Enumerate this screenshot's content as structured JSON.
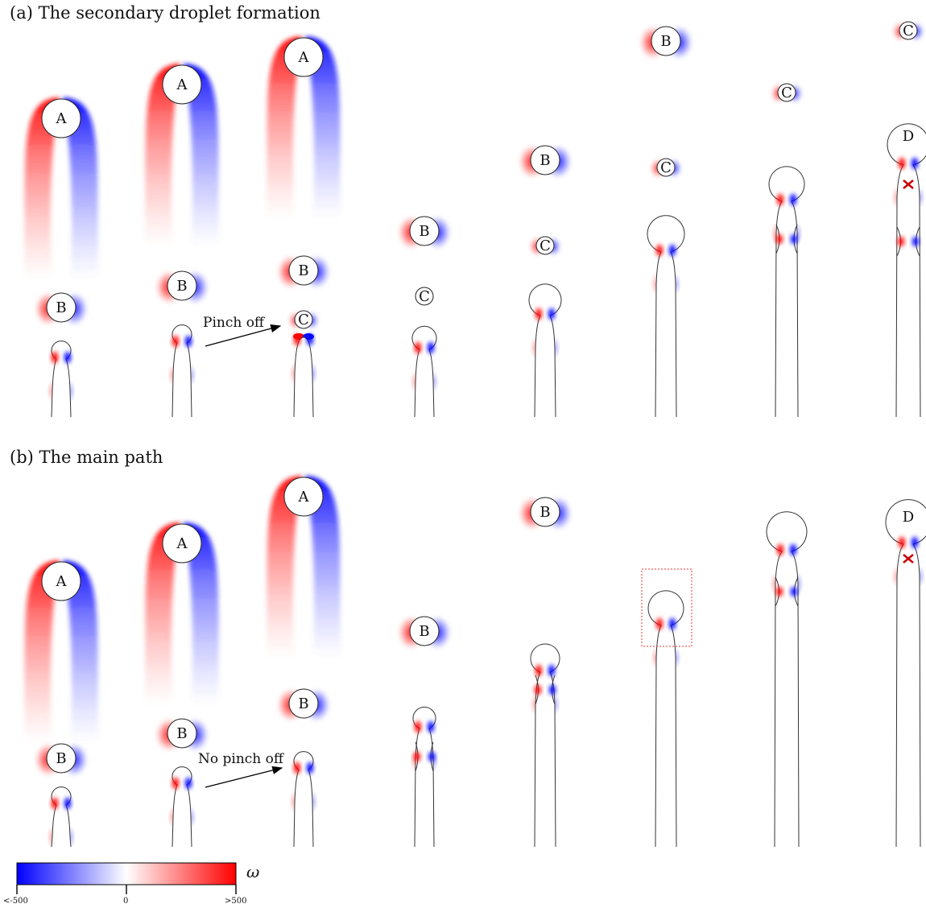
{
  "panels": {
    "a": {
      "title": "(a) The secondary droplet formation",
      "arrow_label": "Pinch off"
    },
    "b": {
      "title": "(b) The main path",
      "arrow_label": "No pinch off"
    }
  },
  "colorbar": {
    "symbol": "ω",
    "ticks": [
      "<-500",
      "0",
      ">500"
    ],
    "colors": {
      "negative": "#0000ff",
      "zero": "#ffffff",
      "positive": "#ff0000"
    }
  },
  "interface_color": "#333333",
  "frames": [
    {
      "panel": "a",
      "items": [
        {
          "type": "jet",
          "neck_y": 446,
          "bot": 518,
          "w": 12,
          "cap_r": 12
        },
        {
          "type": "drop",
          "y": 382,
          "r": 18,
          "label": "B",
          "wake": "small"
        },
        {
          "type": "drop",
          "y": 147,
          "r": 24,
          "label": "A",
          "wake": "large"
        }
      ]
    },
    {
      "panel": "a",
      "items": [
        {
          "type": "jet",
          "neck_y": 426,
          "bot": 518,
          "w": 12,
          "cap_r": 12
        },
        {
          "type": "drop",
          "y": 355,
          "r": 18,
          "label": "B",
          "wake": "small"
        },
        {
          "type": "drop",
          "y": 105,
          "r": 24,
          "label": "A",
          "wake": "large"
        }
      ]
    },
    {
      "panel": "a",
      "items": [
        {
          "type": "jet",
          "neck_y": 424,
          "bot": 518,
          "w": 12,
          "cap_r": 0
        },
        {
          "type": "drop",
          "y": 397,
          "r": 11,
          "label": "C",
          "wake": "pinch"
        },
        {
          "type": "drop",
          "y": 336,
          "r": 18,
          "label": "B",
          "wake": "small"
        },
        {
          "type": "drop",
          "y": 71,
          "r": 24,
          "label": "A",
          "wake": "large"
        }
      ]
    },
    {
      "panel": "a",
      "items": [
        {
          "type": "jet",
          "neck_y": 434,
          "bot": 518,
          "w": 12,
          "cap_r": 15
        },
        {
          "type": "drop",
          "y": 368,
          "r": 11,
          "label": "C",
          "wake": "none"
        },
        {
          "type": "drop",
          "y": 287,
          "r": 18,
          "label": "B",
          "wake": "small"
        }
      ]
    },
    {
      "panel": "a",
      "items": [
        {
          "type": "jet",
          "neck_y": 392,
          "bot": 518,
          "w": 13,
          "cap_r": 20
        },
        {
          "type": "drop",
          "y": 305,
          "r": 11,
          "label": "C",
          "wake": "tiny"
        },
        {
          "type": "drop",
          "y": 199,
          "r": 18,
          "label": "B",
          "wake": "small"
        }
      ]
    },
    {
      "panel": "a",
      "items": [
        {
          "type": "jet",
          "neck_y": 313,
          "bot": 518,
          "w": 13,
          "cap_r": 23
        },
        {
          "type": "drop",
          "y": 208,
          "r": 11,
          "label": "C",
          "wake": "tiny"
        },
        {
          "type": "drop",
          "y": 51,
          "r": 18,
          "label": "B",
          "wake": "small"
        }
      ]
    },
    {
      "panel": "a",
      "items": [
        {
          "type": "jet",
          "neck_y": 250,
          "bot": 518,
          "w": 14,
          "cap_r": 22,
          "neck2_y": 297
        },
        {
          "type": "drop",
          "y": 115,
          "r": 11,
          "label": "C",
          "wake": "tiny"
        }
      ]
    },
    {
      "panel": "a",
      "items": [
        {
          "type": "jet",
          "neck_y": 205,
          "bot": 518,
          "w": 15,
          "cap_r": 26,
          "neck2_y": 300,
          "vortex_y": 229
        },
        {
          "type": "drop",
          "y": 38,
          "r": 11,
          "label": "C",
          "wake": "tiny"
        },
        {
          "type": "label",
          "y": 168,
          "label": "D"
        }
      ]
    },
    {
      "panel": "b",
      "items": [
        {
          "type": "jet",
          "neck_y": 1000,
          "bot": 1052,
          "w": 12,
          "cap_r": 12
        },
        {
          "type": "drop",
          "y": 942,
          "r": 18,
          "label": "B",
          "wake": "small"
        },
        {
          "type": "drop",
          "y": 722,
          "r": 24,
          "label": "A",
          "wake": "large"
        }
      ]
    },
    {
      "panel": "b",
      "items": [
        {
          "type": "jet",
          "neck_y": 975,
          "bot": 1052,
          "w": 12,
          "cap_r": 12
        },
        {
          "type": "drop",
          "y": 911,
          "r": 18,
          "label": "B",
          "wake": "small"
        },
        {
          "type": "drop",
          "y": 675,
          "r": 24,
          "label": "A",
          "wake": "large"
        }
      ]
    },
    {
      "panel": "b",
      "items": [
        {
          "type": "jet",
          "neck_y": 956,
          "bot": 1052,
          "w": 12,
          "cap_r": 12
        },
        {
          "type": "drop",
          "y": 874,
          "r": 18,
          "label": "B",
          "wake": "small"
        },
        {
          "type": "drop",
          "y": 617,
          "r": 24,
          "label": "A",
          "wake": "large"
        }
      ]
    },
    {
      "panel": "b",
      "items": [
        {
          "type": "jet",
          "neck_y": 905,
          "bot": 1052,
          "w": 12,
          "cap_r": 14,
          "neck2_y": 940
        },
        {
          "type": "drop",
          "y": 784,
          "r": 18,
          "label": "B",
          "wake": "small"
        }
      ]
    },
    {
      "panel": "b",
      "items": [
        {
          "type": "jet",
          "neck_y": 835,
          "bot": 1052,
          "w": 13,
          "cap_r": 18,
          "neck2_y": 857
        },
        {
          "type": "drop",
          "y": 636,
          "r": 18,
          "label": "B",
          "wake": "small"
        }
      ]
    },
    {
      "panel": "b",
      "items": [
        {
          "type": "jet",
          "neck_y": 777,
          "bot": 1052,
          "w": 13,
          "cap_r": 22,
          "box": true
        }
      ]
    },
    {
      "panel": "b",
      "items": [
        {
          "type": "jet",
          "neck_y": 685,
          "bot": 1052,
          "w": 15,
          "cap_r": 25,
          "neck2_y": 735
        }
      ]
    },
    {
      "panel": "b",
      "items": [
        {
          "type": "jet",
          "neck_y": 676,
          "bot": 1052,
          "w": 15,
          "cap_r": 28,
          "vortex_y": 694
        },
        {
          "type": "label",
          "y": 641,
          "label": "D"
        }
      ]
    }
  ]
}
